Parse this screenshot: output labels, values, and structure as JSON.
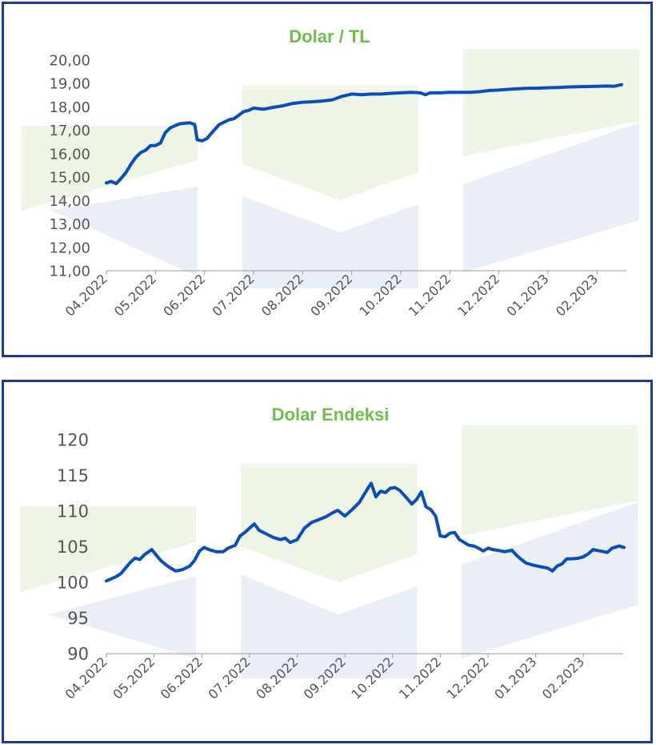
{
  "colors": {
    "frame": "#1f3d8a",
    "line": "#0a4fb8",
    "title": "#6cbf4a",
    "watermark_green": "#eef4e6",
    "watermark_blue": "#e9eef7"
  },
  "chart_data": [
    {
      "type": "line",
      "title": "Dolar / TL",
      "xlabel": "",
      "ylabel": "",
      "x_ticks": [
        "04.2022",
        "05.2022",
        "06.2022",
        "07.2022",
        "08.2022",
        "09.2022",
        "10.2022",
        "11.2022",
        "12.2022",
        "01.2023",
        "02.2023"
      ],
      "y_ticks": [
        "11,00",
        "12,00",
        "13,00",
        "14,00",
        "15,00",
        "16,00",
        "17,00",
        "18,00",
        "19,00",
        "20,00"
      ],
      "ylim": [
        11,
        20
      ],
      "x_range": [
        0,
        10.55
      ],
      "grid": false,
      "series": [
        {
          "points": [
            [
              0.0,
              14.75
            ],
            [
              0.1,
              14.82
            ],
            [
              0.2,
              14.72
            ],
            [
              0.3,
              14.95
            ],
            [
              0.4,
              15.2
            ],
            [
              0.5,
              15.55
            ],
            [
              0.6,
              15.85
            ],
            [
              0.7,
              16.05
            ],
            [
              0.8,
              16.15
            ],
            [
              0.9,
              16.35
            ],
            [
              1.0,
              16.35
            ],
            [
              1.1,
              16.45
            ],
            [
              1.2,
              16.9
            ],
            [
              1.3,
              17.1
            ],
            [
              1.4,
              17.2
            ],
            [
              1.5,
              17.28
            ],
            [
              1.6,
              17.3
            ],
            [
              1.7,
              17.32
            ],
            [
              1.8,
              17.25
            ],
            [
              1.85,
              16.6
            ],
            [
              1.95,
              16.55
            ],
            [
              2.05,
              16.65
            ],
            [
              2.15,
              16.9
            ],
            [
              2.3,
              17.25
            ],
            [
              2.5,
              17.45
            ],
            [
              2.6,
              17.5
            ],
            [
              2.7,
              17.65
            ],
            [
              2.8,
              17.8
            ],
            [
              2.9,
              17.85
            ],
            [
              3.0,
              17.95
            ],
            [
              3.2,
              17.9
            ],
            [
              3.4,
              17.98
            ],
            [
              3.6,
              18.05
            ],
            [
              3.8,
              18.15
            ],
            [
              4.0,
              18.2
            ],
            [
              4.2,
              18.22
            ],
            [
              4.4,
              18.25
            ],
            [
              4.6,
              18.3
            ],
            [
              4.8,
              18.45
            ],
            [
              5.0,
              18.55
            ],
            [
              5.2,
              18.52
            ],
            [
              5.4,
              18.55
            ],
            [
              5.6,
              18.55
            ],
            [
              5.8,
              18.58
            ],
            [
              6.0,
              18.6
            ],
            [
              6.2,
              18.62
            ],
            [
              6.4,
              18.6
            ],
            [
              6.5,
              18.52
            ],
            [
              6.6,
              18.6
            ],
            [
              6.8,
              18.6
            ],
            [
              7.0,
              18.62
            ],
            [
              7.2,
              18.62
            ],
            [
              7.4,
              18.62
            ],
            [
              7.6,
              18.65
            ],
            [
              7.8,
              18.7
            ],
            [
              8.0,
              18.72
            ],
            [
              8.2,
              18.75
            ],
            [
              8.4,
              18.78
            ],
            [
              8.6,
              18.8
            ],
            [
              8.8,
              18.8
            ],
            [
              9.0,
              18.82
            ],
            [
              9.2,
              18.83
            ],
            [
              9.4,
              18.85
            ],
            [
              9.6,
              18.86
            ],
            [
              9.8,
              18.87
            ],
            [
              10.0,
              18.88
            ],
            [
              10.2,
              18.89
            ],
            [
              10.35,
              18.88
            ],
            [
              10.5,
              18.95
            ]
          ]
        }
      ]
    },
    {
      "type": "line",
      "title": "Dolar Endeksi",
      "xlabel": "",
      "ylabel": "",
      "x_ticks": [
        "04.2022",
        "05.2022",
        "06.2022",
        "07.2022",
        "08.2022",
        "09.2022",
        "10.2022",
        "11.2022",
        "12.2022",
        "01.2023",
        "02.2023"
      ],
      "y_ticks": [
        "90",
        "95",
        "100",
        "105",
        "110",
        "115",
        "120"
      ],
      "ylim": [
        90,
        120
      ],
      "x_range": [
        0,
        10.9
      ],
      "grid": false,
      "series": [
        {
          "points": [
            [
              0.0,
              100.2
            ],
            [
              0.1,
              100.5
            ],
            [
              0.2,
              100.8
            ],
            [
              0.3,
              101.2
            ],
            [
              0.4,
              102.0
            ],
            [
              0.5,
              102.8
            ],
            [
              0.6,
              103.4
            ],
            [
              0.7,
              103.2
            ],
            [
              0.8,
              103.9
            ],
            [
              0.95,
              104.6
            ],
            [
              1.05,
              103.8
            ],
            [
              1.15,
              103.0
            ],
            [
              1.3,
              102.2
            ],
            [
              1.45,
              101.6
            ],
            [
              1.6,
              101.8
            ],
            [
              1.75,
              102.3
            ],
            [
              1.85,
              103.1
            ],
            [
              1.95,
              104.4
            ],
            [
              2.05,
              104.9
            ],
            [
              2.15,
              104.6
            ],
            [
              2.3,
              104.3
            ],
            [
              2.45,
              104.3
            ],
            [
              2.55,
              104.8
            ],
            [
              2.7,
              105.2
            ],
            [
              2.8,
              106.5
            ],
            [
              2.9,
              107.0
            ],
            [
              3.0,
              107.6
            ],
            [
              3.1,
              108.2
            ],
            [
              3.2,
              107.3
            ],
            [
              3.35,
              106.8
            ],
            [
              3.5,
              106.3
            ],
            [
              3.65,
              106.0
            ],
            [
              3.75,
              106.2
            ],
            [
              3.85,
              105.6
            ],
            [
              4.0,
              106.0
            ],
            [
              4.15,
              107.6
            ],
            [
              4.3,
              108.4
            ],
            [
              4.45,
              108.8
            ],
            [
              4.6,
              109.2
            ],
            [
              4.75,
              109.8
            ],
            [
              4.85,
              110.1
            ],
            [
              5.0,
              109.3
            ],
            [
              5.15,
              110.2
            ],
            [
              5.3,
              111.2
            ],
            [
              5.4,
              112.3
            ],
            [
              5.5,
              113.4
            ],
            [
              5.55,
              113.9
            ],
            [
              5.65,
              112.0
            ],
            [
              5.75,
              112.8
            ],
            [
              5.85,
              112.6
            ],
            [
              5.95,
              113.2
            ],
            [
              6.05,
              113.3
            ],
            [
              6.15,
              112.9
            ],
            [
              6.3,
              111.8
            ],
            [
              6.4,
              111.0
            ],
            [
              6.5,
              111.6
            ],
            [
              6.6,
              112.7
            ],
            [
              6.7,
              110.6
            ],
            [
              6.8,
              110.2
            ],
            [
              6.9,
              109.3
            ],
            [
              7.0,
              106.5
            ],
            [
              7.1,
              106.4
            ],
            [
              7.2,
              106.9
            ],
            [
              7.3,
              107.0
            ],
            [
              7.4,
              106.0
            ],
            [
              7.5,
              105.6
            ],
            [
              7.6,
              105.2
            ],
            [
              7.7,
              105.1
            ],
            [
              7.8,
              104.8
            ],
            [
              7.9,
              104.4
            ],
            [
              8.0,
              104.8
            ],
            [
              8.1,
              104.6
            ],
            [
              8.2,
              104.5
            ],
            [
              8.35,
              104.3
            ],
            [
              8.5,
              104.5
            ],
            [
              8.6,
              103.8
            ],
            [
              8.7,
              103.2
            ],
            [
              8.8,
              102.7
            ],
            [
              8.95,
              102.4
            ],
            [
              9.1,
              102.2
            ],
            [
              9.25,
              102.0
            ],
            [
              9.35,
              101.6
            ],
            [
              9.45,
              102.3
            ],
            [
              9.55,
              102.6
            ],
            [
              9.65,
              103.3
            ],
            [
              9.75,
              103.3
            ],
            [
              9.9,
              103.4
            ],
            [
              10.0,
              103.6
            ],
            [
              10.1,
              104.0
            ],
            [
              10.2,
              104.6
            ],
            [
              10.35,
              104.4
            ],
            [
              10.5,
              104.2
            ],
            [
              10.6,
              104.8
            ],
            [
              10.75,
              105.1
            ],
            [
              10.85,
              104.9
            ]
          ]
        }
      ]
    }
  ]
}
